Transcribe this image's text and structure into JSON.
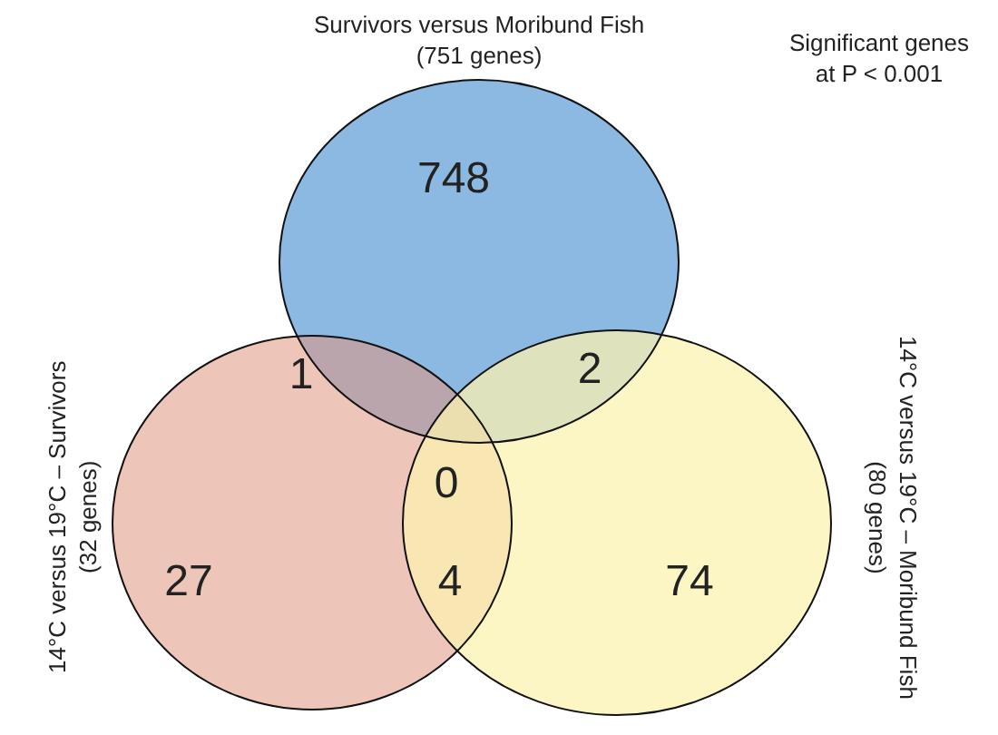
{
  "chart_data": {
    "type": "other",
    "title": "Significant genes\nat P < 0.001",
    "annotations": [
      "Survivors versus Moribund Fish\n(751 genes)",
      "14°C versus 19°C – Survivors\n(32 genes)",
      "14°C versus 19°C – Moribund Fish\n(80 genes)"
    ],
    "categories": [
      null,
      null,
      null,
      null,
      null,
      null,
      null
    ],
    "values": [
      748,
      1,
      2,
      0,
      27,
      4,
      74
    ],
    "data_labels": true
  }
}
